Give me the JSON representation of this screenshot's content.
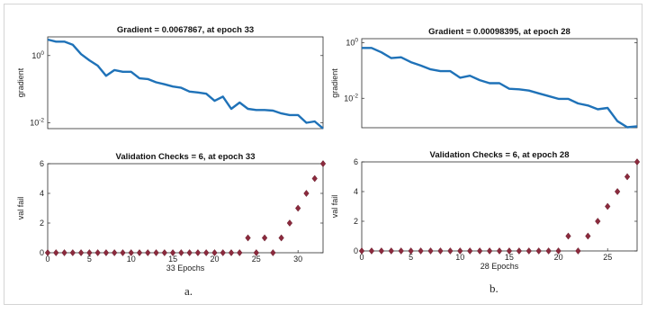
{
  "chart_data": [
    {
      "id": "a-gradient",
      "type": "line",
      "title": "Gradient = 0.0067867, at epoch 33",
      "xlabel": "",
      "ylabel": "gradient",
      "yscale": "log",
      "xlim": [
        0,
        33
      ],
      "ylim": [
        0.0067,
        3.6
      ],
      "yticks": [
        {
          "v": 1,
          "base": "10",
          "exp": "0"
        },
        {
          "v": 0.01,
          "base": "10",
          "exp": "-2"
        }
      ],
      "xticks": [],
      "line_color": "#1f72b8",
      "x": [
        0,
        1,
        2,
        3,
        4,
        5,
        6,
        7,
        8,
        9,
        10,
        11,
        12,
        13,
        14,
        15,
        16,
        17,
        18,
        19,
        20,
        21,
        22,
        23,
        24,
        25,
        26,
        27,
        28,
        29,
        30,
        31,
        32,
        33
      ],
      "values": [
        3.0,
        2.6,
        2.6,
        2.1,
        1.1,
        0.72,
        0.5,
        0.25,
        0.37,
        0.33,
        0.33,
        0.21,
        0.2,
        0.16,
        0.14,
        0.12,
        0.11,
        0.085,
        0.08,
        0.073,
        0.045,
        0.06,
        0.026,
        0.04,
        0.026,
        0.024,
        0.024,
        0.023,
        0.019,
        0.017,
        0.017,
        0.01,
        0.011,
        0.0068
      ]
    },
    {
      "id": "a-validation",
      "type": "scatter",
      "title": "Validation Checks = 6, at epoch 33",
      "xlabel": "33 Epochs",
      "ylabel": "val fail",
      "xlim": [
        0,
        33
      ],
      "ylim": [
        0,
        6
      ],
      "yticks": [
        0,
        2,
        4,
        6
      ],
      "xticks": [
        0,
        5,
        10,
        15,
        20,
        25,
        30
      ],
      "marker_color": "#8b2a3d",
      "x": [
        0,
        1,
        2,
        3,
        4,
        5,
        6,
        7,
        8,
        9,
        10,
        11,
        12,
        13,
        14,
        15,
        16,
        17,
        18,
        19,
        20,
        21,
        22,
        23,
        24,
        25,
        26,
        27,
        28,
        29,
        30,
        31,
        32,
        33
      ],
      "values": [
        0,
        0,
        0,
        0,
        0,
        0,
        0,
        0,
        0,
        0,
        0,
        0,
        0,
        0,
        0,
        0,
        0,
        0,
        0,
        0,
        0,
        0,
        0,
        0,
        1,
        0,
        1,
        0,
        1,
        2,
        3,
        4,
        5,
        6
      ]
    },
    {
      "id": "b-gradient",
      "type": "line",
      "title": "Gradient = 0.00098395, at epoch 28",
      "xlabel": "",
      "ylabel": "gradient",
      "yscale": "log",
      "xlim": [
        0,
        28
      ],
      "ylim": [
        0.00087,
        1.4
      ],
      "yticks": [
        {
          "v": 1,
          "base": "10",
          "exp": "0"
        },
        {
          "v": 0.01,
          "base": "10",
          "exp": "-2"
        }
      ],
      "xticks": [],
      "line_color": "#1f72b8",
      "x": [
        0,
        1,
        2,
        3,
        4,
        5,
        6,
        7,
        8,
        9,
        10,
        11,
        12,
        13,
        14,
        15,
        16,
        17,
        18,
        19,
        20,
        21,
        22,
        23,
        24,
        25,
        26,
        27,
        28
      ],
      "values": [
        0.65,
        0.65,
        0.45,
        0.28,
        0.3,
        0.2,
        0.15,
        0.11,
        0.095,
        0.095,
        0.055,
        0.065,
        0.045,
        0.035,
        0.035,
        0.022,
        0.021,
        0.019,
        0.015,
        0.012,
        0.0095,
        0.0095,
        0.0065,
        0.0055,
        0.004,
        0.0045,
        0.0015,
        0.0009,
        0.00098
      ]
    },
    {
      "id": "b-validation",
      "type": "scatter",
      "title": "Validation Checks = 6, at epoch 28",
      "xlabel": "28 Epochs",
      "ylabel": "val fail",
      "xlim": [
        0,
        28
      ],
      "ylim": [
        0,
        6
      ],
      "yticks": [
        0,
        2,
        4,
        6
      ],
      "xticks": [
        0,
        5,
        10,
        15,
        20,
        25
      ],
      "marker_color": "#8b2a3d",
      "x": [
        0,
        1,
        2,
        3,
        4,
        5,
        6,
        7,
        8,
        9,
        10,
        11,
        12,
        13,
        14,
        15,
        16,
        17,
        18,
        19,
        20,
        21,
        22,
        23,
        24,
        25,
        26,
        27,
        28
      ],
      "values": [
        0,
        0,
        0,
        0,
        0,
        0,
        0,
        0,
        0,
        0,
        0,
        0,
        0,
        0,
        0,
        0,
        0,
        0,
        0,
        0,
        0,
        1,
        0,
        1,
        2,
        3,
        4,
        5,
        6
      ]
    }
  ],
  "captions": {
    "a": "a.",
    "b": "b."
  }
}
